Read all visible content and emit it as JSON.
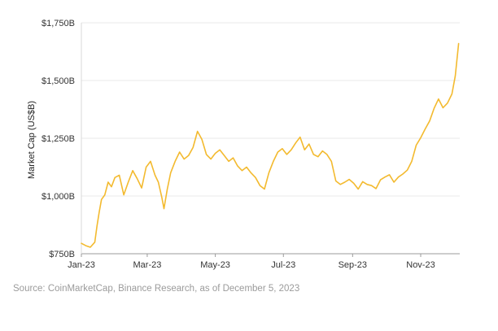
{
  "page": {
    "background": "#ffffff",
    "source_note": "Source: CoinMarketCap, Binance Research, as of December 5, 2023"
  },
  "chart_data": {
    "type": "line",
    "title": "",
    "xlabel": "",
    "ylabel": "Market Cap (US$B)",
    "line_color": "#F3BA2F",
    "grid": true,
    "legend": "none",
    "x_unit": "days since Jan 1, 2023",
    "x_domain": [
      0,
      339
    ],
    "y_domain": [
      750,
      1750
    ],
    "y_ticks": [
      {
        "value": 750,
        "label": "$750B"
      },
      {
        "value": 1000,
        "label": "$1,000B"
      },
      {
        "value": 1250,
        "label": "$1,250B"
      },
      {
        "value": 1500,
        "label": "$1,500B"
      },
      {
        "value": 1750,
        "label": "$1,750B"
      }
    ],
    "x_ticks": [
      {
        "value": 0,
        "label": "Jan-23"
      },
      {
        "value": 59,
        "label": "Mar-23"
      },
      {
        "value": 120,
        "label": "May-23"
      },
      {
        "value": 181,
        "label": "Jul-23"
      },
      {
        "value": 243,
        "label": "Sep-23"
      },
      {
        "value": 304,
        "label": "Nov-23"
      }
    ],
    "series": [
      {
        "name": "Market Cap (US$B)",
        "x": [
          0,
          4,
          8,
          12,
          14,
          16,
          18,
          21,
          24,
          27,
          30,
          34,
          38,
          42,
          46,
          50,
          54,
          58,
          62,
          66,
          69,
          72,
          74,
          77,
          80,
          84,
          88,
          92,
          96,
          100,
          104,
          108,
          112,
          116,
          120,
          124,
          128,
          132,
          136,
          140,
          144,
          148,
          152,
          156,
          160,
          164,
          168,
          172,
          176,
          180,
          184,
          188,
          192,
          196,
          200,
          204,
          208,
          212,
          216,
          220,
          224,
          228,
          232,
          236,
          240,
          244,
          248,
          252,
          256,
          260,
          264,
          268,
          272,
          276,
          280,
          284,
          288,
          292,
          296,
          300,
          304,
          308,
          312,
          316,
          320,
          324,
          328,
          332,
          335,
          338
        ],
        "values": [
          795,
          785,
          778,
          800,
          870,
          930,
          985,
          1005,
          1060,
          1040,
          1080,
          1090,
          1005,
          1060,
          1110,
          1075,
          1035,
          1125,
          1150,
          1090,
          1060,
          995,
          945,
          1030,
          1100,
          1150,
          1190,
          1160,
          1175,
          1210,
          1280,
          1245,
          1180,
          1160,
          1185,
          1200,
          1175,
          1150,
          1165,
          1130,
          1110,
          1125,
          1100,
          1080,
          1045,
          1030,
          1100,
          1150,
          1190,
          1205,
          1180,
          1200,
          1230,
          1255,
          1200,
          1225,
          1180,
          1170,
          1195,
          1180,
          1150,
          1065,
          1050,
          1060,
          1072,
          1055,
          1030,
          1062,
          1050,
          1045,
          1032,
          1070,
          1082,
          1092,
          1060,
          1082,
          1095,
          1112,
          1150,
          1220,
          1252,
          1290,
          1325,
          1380,
          1420,
          1382,
          1402,
          1442,
          1520,
          1660
        ]
      }
    ]
  }
}
